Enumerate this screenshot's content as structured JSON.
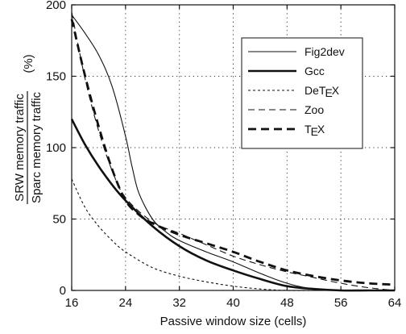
{
  "chart_data": {
    "type": "line",
    "xlabel": "Passive window size (cells)",
    "ylabel_numerator": "SRW memory traffic",
    "ylabel_denominator": "Sparc memory traffic",
    "ylabel_unit": "(%)",
    "xlim": [
      16,
      64
    ],
    "ylim": [
      0,
      200
    ],
    "xticks": [
      16,
      24,
      32,
      40,
      48,
      56,
      64
    ],
    "yticks": [
      0,
      50,
      100,
      150,
      200
    ],
    "grid": true,
    "legend_placement": "top-right",
    "series": [
      {
        "name": "Fig2dev",
        "style": "thin-solid",
        "x": [
          16,
          18,
          20,
          22,
          24,
          25,
          26,
          28,
          30,
          32,
          36,
          40,
          44,
          48,
          52,
          56,
          60,
          64
        ],
        "values": [
          193,
          180,
          165,
          143,
          108,
          86,
          68,
          50,
          41,
          35,
          27,
          20,
          12,
          5,
          1,
          0,
          0,
          0
        ]
      },
      {
        "name": "Gcc",
        "style": "thick-solid",
        "x": [
          16,
          18,
          20,
          22,
          24,
          28,
          32,
          36,
          40,
          44,
          48,
          52,
          56,
          60,
          64
        ],
        "values": [
          120,
          102,
          87,
          74,
          63,
          45,
          31,
          21,
          14,
          8,
          3,
          1,
          0,
          0,
          0
        ]
      },
      {
        "name": "DeTEX",
        "name_parts": [
          "DeT",
          "E",
          "X"
        ],
        "style": "thin-dotted",
        "x": [
          16,
          18,
          20,
          22,
          24,
          28,
          32,
          36,
          40,
          44,
          48,
          52,
          56,
          60,
          64
        ],
        "values": [
          78,
          58,
          45,
          35,
          27,
          16,
          10,
          6,
          3,
          1,
          0,
          0,
          0,
          0,
          0
        ]
      },
      {
        "name": "Zoo",
        "style": "thin-dashed",
        "x": [
          16,
          18,
          20,
          22,
          24,
          28,
          32,
          36,
          40,
          44,
          48,
          52,
          56,
          60,
          64
        ],
        "values": [
          195,
          148,
          112,
          84,
          65,
          48,
          40,
          32,
          24,
          18,
          13,
          9,
          5,
          2,
          0
        ]
      },
      {
        "name": "TEX",
        "name_parts": [
          "T",
          "E",
          "X"
        ],
        "style": "thick-dashed",
        "x": [
          16,
          18,
          20,
          22,
          24,
          26,
          28,
          32,
          36,
          40,
          44,
          48,
          52,
          56,
          60,
          64
        ],
        "values": [
          190,
          150,
          115,
          85,
          63,
          53,
          47,
          39,
          33,
          27,
          20,
          14,
          10,
          7,
          5,
          4
        ]
      }
    ]
  }
}
